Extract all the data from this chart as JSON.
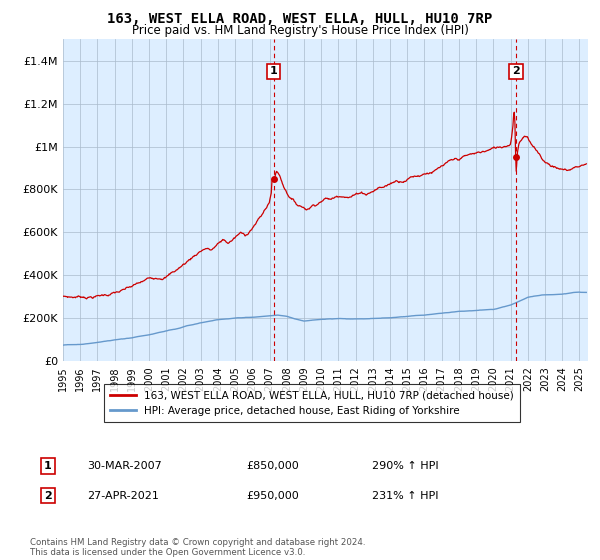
{
  "title": "163, WEST ELLA ROAD, WEST ELLA, HULL, HU10 7RP",
  "subtitle": "Price paid vs. HM Land Registry's House Price Index (HPI)",
  "legend_line1": "163, WEST ELLA ROAD, WEST ELLA, HULL, HU10 7RP (detached house)",
  "legend_line2": "HPI: Average price, detached house, East Riding of Yorkshire",
  "annotation1_label": "1",
  "annotation1_date": "30-MAR-2007",
  "annotation1_price": "£850,000",
  "annotation1_hpi": "290% ↑ HPI",
  "annotation2_label": "2",
  "annotation2_date": "27-APR-2021",
  "annotation2_price": "£950,000",
  "annotation2_hpi": "231% ↑ HPI",
  "footnote": "Contains HM Land Registry data © Crown copyright and database right 2024.\nThis data is licensed under the Open Government Licence v3.0.",
  "red_color": "#cc0000",
  "blue_color": "#6699cc",
  "plot_bg_color": "#ddeeff",
  "dashed_red": "#cc0000",
  "background": "#ffffff",
  "grid_color": "#aabbcc",
  "ylim": [
    0,
    1500000
  ],
  "yticks": [
    0,
    200000,
    400000,
    600000,
    800000,
    1000000,
    1200000,
    1400000
  ],
  "ytick_labels": [
    "£0",
    "£200K",
    "£400K",
    "£600K",
    "£800K",
    "£1M",
    "£1.2M",
    "£1.4M"
  ],
  "year_start": 1995,
  "year_end": 2025,
  "sale1_year": 2007.23,
  "sale1_price": 850000,
  "sale2_year": 2021.32,
  "sale2_price": 950000
}
